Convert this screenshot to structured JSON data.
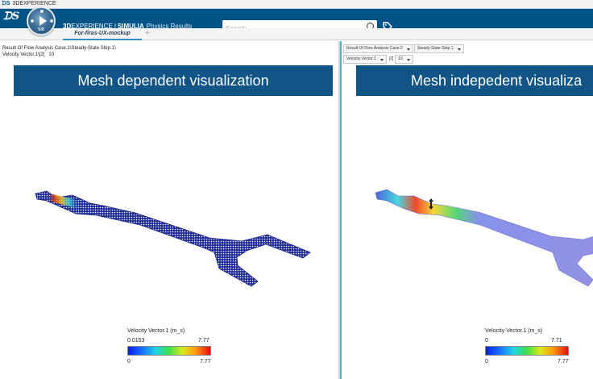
{
  "window": {
    "title": "3DEXPERIENCE"
  },
  "header": {
    "brand_prefix": "3D",
    "brand_main": "EXPERIENCE",
    "brand_sep": "|",
    "brand_product": "SIMULIA",
    "app_name": "Physics Results",
    "compass_version": "V.R",
    "search_placeholder": "Search"
  },
  "tabs": {
    "active": "For-firas-UX-mockup",
    "add_label": "+"
  },
  "left": {
    "path_line1": "Result Of Flow Analysis Case.1\\Steady-State Step.1\\",
    "path_line2": "Velocity Vector.1\\[2]",
    "path_value": "10",
    "banner": "Mesh dependent visualization",
    "legend": {
      "title": "Velocity Vector.1 (m_s)",
      "min_top": "0.0153",
      "max_top": "7.77",
      "min_bottom": "0",
      "max_bottom": "7.77"
    }
  },
  "right": {
    "dropdowns_row1": [
      "Result Of Flow Analysis Case.2",
      "Steady-State Step.1"
    ],
    "dropdown_field": "Velocity Vector.1",
    "index_label": "[2]",
    "index_value": "10",
    "banner": "Mesh indepedent visualiza",
    "legend": {
      "title": "Velocity Vector.1 (m_s)",
      "min_top": "0",
      "max_top": "7.71",
      "min_bottom": "0",
      "max_bottom": "7.77"
    }
  },
  "colors": {
    "header_bg": "#005386",
    "banner_bg": "#115486",
    "pane_divider": "#49b7c7"
  }
}
